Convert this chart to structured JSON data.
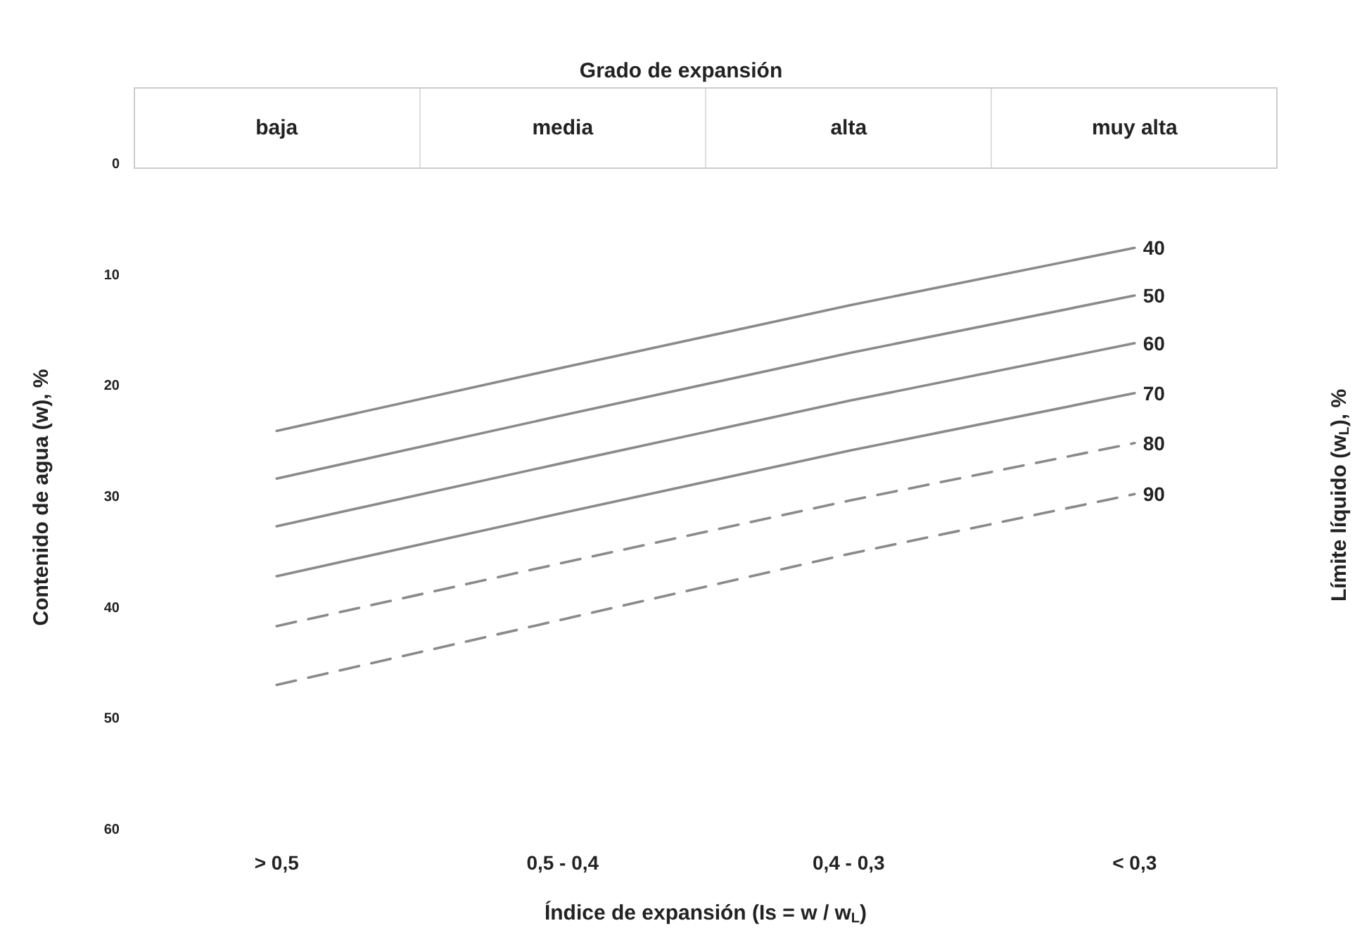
{
  "chart_data": {
    "type": "line",
    "title": "Grado de expansión",
    "xlabel": "Índice de expansión (Is = w / w$_{L}$)",
    "ylabel": "Contenido de agua (w), %",
    "y2label": "Límite líquido (w$_{L}$), %",
    "annotations": [
      "baja",
      "media",
      "alta",
      "muy alta"
    ],
    "categories": [
      "> 0,5",
      "0,5 - 0,4",
      "0,4 - 0,3",
      "< 0,3"
    ],
    "ylim": [
      60,
      0
    ],
    "yticks": [
      0,
      10,
      20,
      30,
      40,
      50,
      60
    ],
    "grid": false,
    "legend": false,
    "marker": "none",
    "series": [
      {
        "name": "40",
        "color": "#8a8a8a",
        "line_style": "solid",
        "values": [
          24.0,
          18.3,
          12.7,
          7.5
        ]
      },
      {
        "name": "50",
        "color": "#8a8a8a",
        "line_style": "solid",
        "values": [
          28.3,
          22.6,
          17.0,
          11.8
        ]
      },
      {
        "name": "60",
        "color": "#8a8a8a",
        "line_style": "solid",
        "values": [
          32.6,
          26.9,
          21.3,
          16.1
        ]
      },
      {
        "name": "70",
        "color": "#8a8a8a",
        "line_style": "solid",
        "values": [
          37.1,
          31.4,
          25.8,
          20.6
        ]
      },
      {
        "name": "80",
        "color": "#8a8a8a",
        "line_style": "dashed",
        "values": [
          41.6,
          35.9,
          30.3,
          25.1
        ]
      },
      {
        "name": "90",
        "color": "#8a8a8a",
        "line_style": "dashed",
        "values": [
          46.9,
          41.0,
          35.1,
          29.7
        ]
      }
    ]
  }
}
